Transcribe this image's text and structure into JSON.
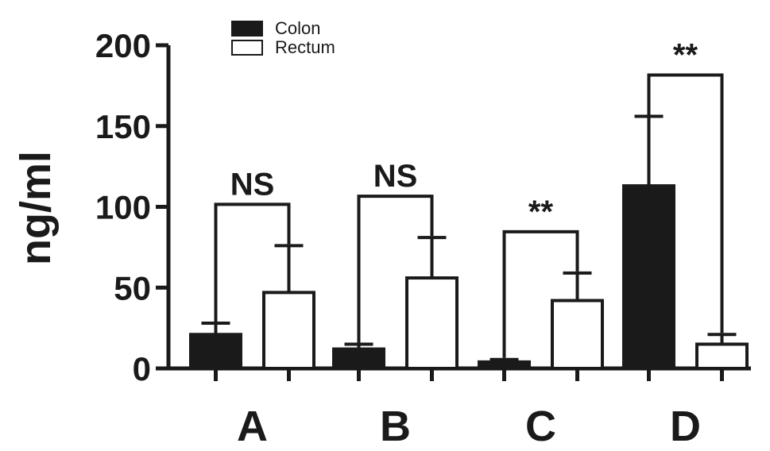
{
  "chart_data": {
    "type": "bar",
    "ylabel": "ng/ml",
    "ylim": [
      0,
      200
    ],
    "yticks": [
      0,
      50,
      100,
      150,
      200
    ],
    "categories": [
      "A",
      "B",
      "C",
      "D"
    ],
    "legend_position": "top-left",
    "series": [
      {
        "name": "Colon",
        "fill": "#1a1a1a",
        "values": [
          21,
          12,
          4,
          113
        ],
        "errors": [
          7,
          3,
          1.5,
          43
        ]
      },
      {
        "name": "Rectum",
        "fill": "#ffffff",
        "values": [
          47,
          56,
          42,
          15
        ],
        "errors": [
          29,
          25,
          17,
          6
        ]
      }
    ],
    "significance": [
      "NS",
      "NS",
      "**",
      "**"
    ]
  }
}
